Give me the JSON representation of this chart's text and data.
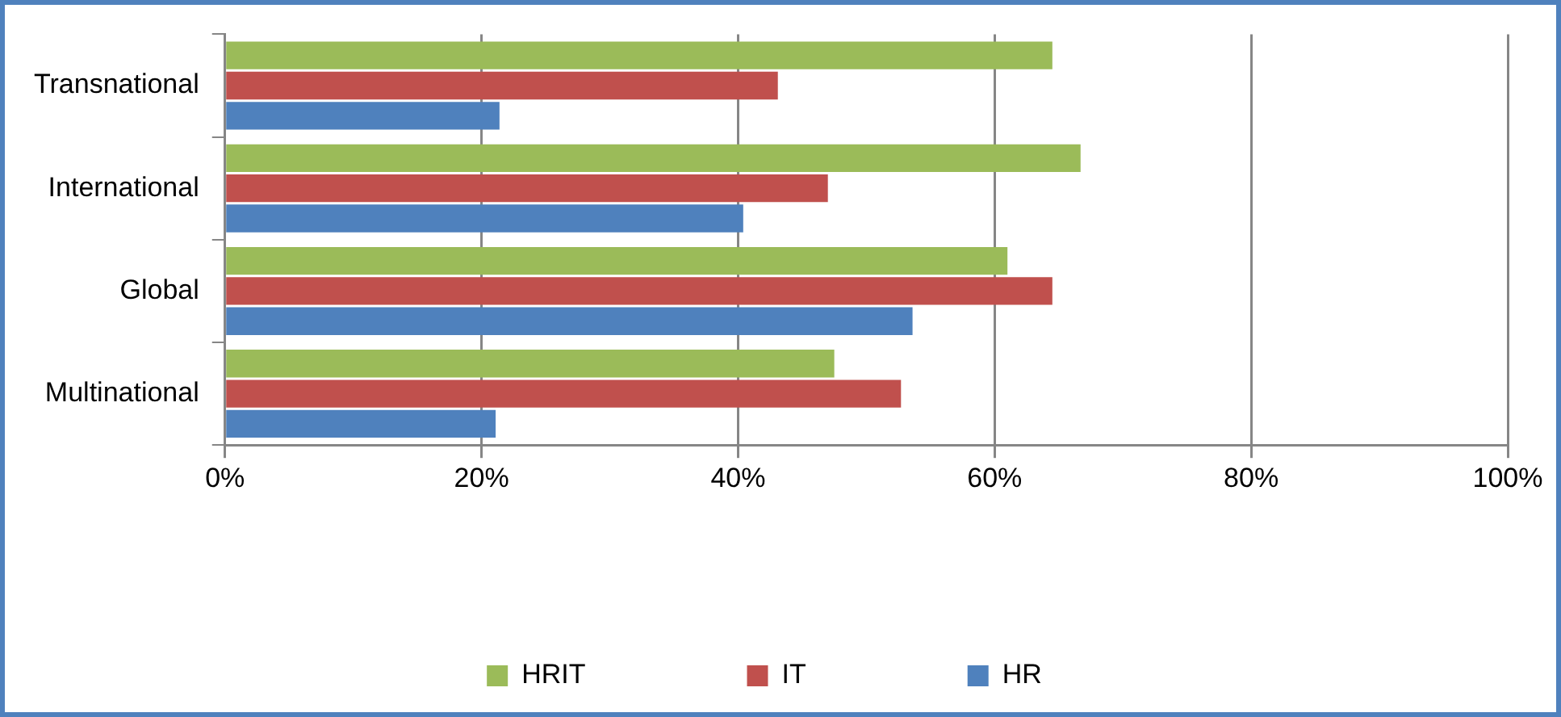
{
  "chart_data": {
    "type": "bar",
    "orientation": "horizontal",
    "categories": [
      "Transnational",
      "International",
      "Global",
      "Multinational"
    ],
    "series": [
      {
        "name": "HRIT",
        "color": "#9bbb59",
        "values": [
          64.5,
          66.7,
          61.0,
          47.5
        ]
      },
      {
        "name": "IT",
        "color": "#c0504d",
        "values": [
          43.1,
          47.0,
          64.5,
          52.7
        ]
      },
      {
        "name": "HR",
        "color": "#4f81bd",
        "values": [
          21.4,
          40.4,
          53.6,
          21.1
        ]
      }
    ],
    "xlim": [
      0,
      100
    ],
    "xticks": [
      {
        "value": 0,
        "label": "0%"
      },
      {
        "value": 20,
        "label": "20%"
      },
      {
        "value": 40,
        "label": "40%"
      },
      {
        "value": 60,
        "label": "60%"
      },
      {
        "value": 80,
        "label": "80%"
      },
      {
        "value": 100,
        "label": "100%"
      }
    ],
    "grid": "x",
    "legend": "bottom"
  }
}
